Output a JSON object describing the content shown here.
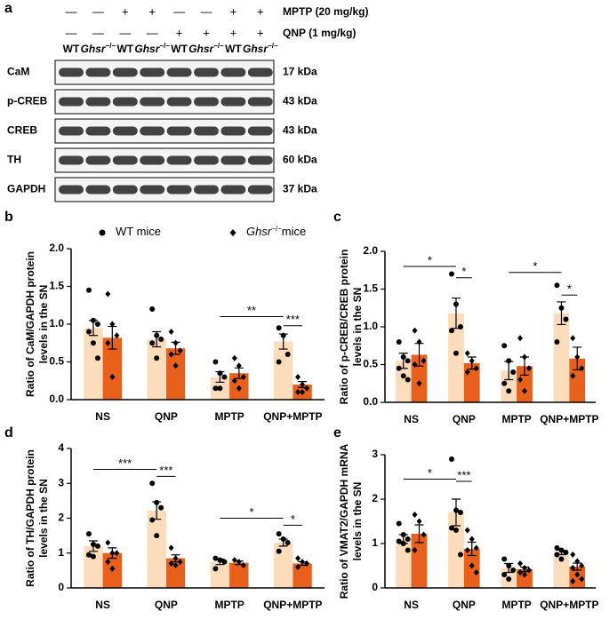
{
  "blot": {
    "panel": "a",
    "treatments": [
      {
        "label": "MPTP (20 mg/kg)",
        "signs": [
          "—",
          "—",
          "+",
          "+",
          "—",
          "—",
          "+",
          "+"
        ]
      },
      {
        "label": "QNP (1 mg/kg)",
        "signs": [
          "—",
          "—",
          "—",
          "—",
          "+",
          "+",
          "+",
          "+"
        ]
      }
    ],
    "genotypes": [
      {
        "text": "WT"
      },
      {
        "text": "Ghsr",
        "sup": "−/−"
      },
      {
        "text": "WT"
      },
      {
        "text": "Ghsr",
        "sup": "−/−"
      },
      {
        "text": "WT"
      },
      {
        "text": "Ghsr",
        "sup": "−/−"
      },
      {
        "text": "WT"
      },
      {
        "text": "Ghsr",
        "sup": "−/−"
      }
    ],
    "rows": [
      {
        "name": "CaM",
        "size": "17 kDa"
      },
      {
        "name": "p-CREB",
        "size": "43 kDa"
      },
      {
        "name": "CREB",
        "size": "43 kDa"
      },
      {
        "name": "TH",
        "size": "60 kDa"
      },
      {
        "name": "GAPDH",
        "size": "37 kDa"
      }
    ]
  },
  "legend": [
    {
      "text": "WT mice",
      "marker": "circle"
    },
    {
      "text": "Ghsr",
      "sup": "−/−",
      "suffix": "mice",
      "marker": "diamond"
    }
  ],
  "chart_data": [
    {
      "type": "bar",
      "panel": "b",
      "ylabel": [
        "Ratio of CaM/GAPDH protein",
        "levels in the SN"
      ],
      "categories": [
        "NS",
        "QNP",
        "MPTP",
        "QNP+MPTP"
      ],
      "ylim": [
        0,
        2
      ],
      "yticks": [
        {
          "value": 0,
          "label": "0.0"
        },
        0.5,
        {
          "value": 1,
          "label": "1.0"
        },
        1.5,
        {
          "value": 2,
          "label": "2.0"
        }
      ],
      "series": [
        {
          "color": "#fddcbc",
          "marker": "circle",
          "values": [
            0.95,
            0.8,
            0.3,
            0.77
          ],
          "errors": [
            0.1,
            0.1,
            0.07,
            0.1
          ],
          "points": [
            [
              1.45,
              1.05,
              1.0,
              0.9,
              0.75,
              0.55
            ],
            [
              1.2,
              0.85,
              0.8,
              0.75,
              0.55
            ],
            [
              0.5,
              0.35,
              0.3,
              0.15,
              0.15
            ],
            [
              0.95,
              0.85,
              0.6,
              0.5
            ]
          ]
        },
        {
          "color": "#e8601c",
          "marker": "diamond",
          "values": [
            0.82,
            0.68,
            0.35,
            0.2
          ],
          "errors": [
            0.15,
            0.08,
            0.07,
            0.04
          ],
          "points": [
            [
              1.4,
              1.0,
              0.85,
              0.75,
              0.3
            ],
            [
              0.9,
              0.75,
              0.65,
              0.6,
              0.45
            ],
            [
              0.55,
              0.45,
              0.3,
              0.25,
              0.15
            ],
            [
              0.3,
              0.2,
              0.15,
              0.1,
              0.1
            ]
          ]
        }
      ],
      "annotations": [
        {
          "text": "**",
          "y": 1.1,
          "from": [
            2,
            0
          ],
          "to": [
            3,
            0
          ]
        },
        {
          "text": "***",
          "y": 0.98,
          "from": [
            3,
            0
          ],
          "to": [
            3,
            1
          ]
        }
      ]
    },
    {
      "type": "bar",
      "panel": "c",
      "ylabel": [
        "Ratio of p-CREB/CREB protein",
        "levels in the SN"
      ],
      "categories": [
        "NS",
        "QNP",
        "MPTP",
        "QNP+MPTP"
      ],
      "ylim": [
        0,
        2
      ],
      "yticks": [
        {
          "value": 0,
          "label": "0.0"
        },
        0.5,
        {
          "value": 1,
          "label": "1.0"
        },
        1.5,
        {
          "value": 2,
          "label": "2.0"
        }
      ],
      "series": [
        {
          "color": "#fddcbc",
          "marker": "circle",
          "values": [
            0.55,
            1.18,
            0.42,
            1.18
          ],
          "errors": [
            0.1,
            0.2,
            0.12,
            0.15
          ],
          "points": [
            [
              0.8,
              0.6,
              0.55,
              0.45,
              0.35,
              0.3
            ],
            [
              1.7,
              1.3,
              1.0,
              0.95,
              0.65
            ],
            [
              0.75,
              0.55,
              0.4,
              0.25,
              0.15
            ],
            [
              1.55,
              1.25,
              1.1,
              0.8
            ]
          ]
        },
        {
          "color": "#e8601c",
          "marker": "diamond",
          "values": [
            0.63,
            0.52,
            0.48,
            0.58
          ],
          "errors": [
            0.15,
            0.08,
            0.12,
            0.15
          ],
          "points": [
            [
              0.95,
              0.8,
              0.55,
              0.5,
              0.25
            ],
            [
              0.65,
              0.55,
              0.45,
              0.4
            ],
            [
              0.85,
              0.6,
              0.45,
              0.3,
              0.15
            ],
            [
              0.85,
              0.6,
              0.45,
              0.35
            ]
          ]
        }
      ],
      "annotations": [
        {
          "text": "*",
          "y": 1.8,
          "from": [
            0,
            0
          ],
          "to": [
            1,
            0
          ]
        },
        {
          "text": "*",
          "y": 1.65,
          "from": [
            1,
            0
          ],
          "to": [
            1,
            1
          ]
        },
        {
          "text": "*",
          "y": 1.72,
          "from": [
            2,
            0
          ],
          "to": [
            3,
            0
          ]
        },
        {
          "text": "*",
          "y": 1.42,
          "from": [
            3,
            0
          ],
          "to": [
            3,
            1
          ]
        }
      ]
    },
    {
      "type": "bar",
      "panel": "d",
      "ylabel": [
        "Ratio of TH/GAPDH protein",
        "levels in the SN"
      ],
      "categories": [
        "NS",
        "QNP",
        "MPTP",
        "QNP+MPTP"
      ],
      "ylim": [
        0,
        4
      ],
      "yticks": [
        0,
        1,
        2,
        3,
        4
      ],
      "series": [
        {
          "color": "#fddcbc",
          "marker": "circle",
          "values": [
            1.2,
            2.22,
            0.75,
            1.3
          ],
          "errors": [
            0.15,
            0.25,
            0.08,
            0.1
          ],
          "points": [
            [
              1.55,
              1.25,
              1.2,
              0.95,
              0.9
            ],
            [
              3.0,
              2.45,
              2.3,
              1.95,
              1.5
            ],
            [
              0.85,
              0.8,
              0.75,
              0.55
            ],
            [
              1.55,
              1.4,
              1.3,
              1.05
            ]
          ]
        },
        {
          "color": "#e8601c",
          "marker": "diamond",
          "values": [
            1.0,
            0.85,
            0.72,
            0.7
          ],
          "errors": [
            0.15,
            0.1,
            0.05,
            0.05
          ],
          "points": [
            [
              1.3,
              1.0,
              1.0,
              0.75,
              0.55
            ],
            [
              1.15,
              0.85,
              0.75,
              0.7,
              0.65
            ],
            [
              0.8,
              0.75,
              0.65
            ],
            [
              0.85,
              0.75,
              0.7,
              0.6
            ]
          ]
        }
      ],
      "annotations": [
        {
          "text": "***",
          "y": 3.4,
          "from": [
            0,
            0
          ],
          "to": [
            1,
            0
          ]
        },
        {
          "text": "***",
          "y": 3.2,
          "from": [
            1,
            0
          ],
          "to": [
            1,
            1
          ]
        },
        {
          "text": "*",
          "y": 2.0,
          "from": [
            2,
            0
          ],
          "to": [
            3,
            0
          ]
        },
        {
          "text": "*",
          "y": 1.8,
          "from": [
            3,
            0
          ],
          "to": [
            3,
            1
          ]
        }
      ]
    },
    {
      "type": "bar",
      "panel": "e",
      "ylabel": [
        "Ratio of VMAT2/GAPDH mRNA",
        "levels in the SN"
      ],
      "categories": [
        "NS",
        "QNP",
        "MPTP",
        "QNP+MPTP"
      ],
      "ylim": [
        0,
        3
      ],
      "yticks": [
        0,
        1,
        2,
        3
      ],
      "series": [
        {
          "color": "#fddcbc",
          "marker": "circle",
          "values": [
            1.1,
            1.7,
            0.45,
            0.8
          ],
          "errors": [
            0.1,
            0.3,
            0.1,
            0.05
          ],
          "points": [
            [
              1.45,
              1.2,
              1.1,
              1.05,
              1.0,
              0.85
            ],
            [
              2.9,
              1.75,
              1.7,
              1.35,
              1.3,
              0.75
            ],
            [
              0.65,
              0.5,
              0.4,
              0.3,
              0.2
            ],
            [
              0.9,
              0.85,
              0.8,
              0.75,
              0.65
            ]
          ]
        },
        {
          "color": "#e8601c",
          "marker": "diamond",
          "values": [
            1.22,
            0.88,
            0.42,
            0.48
          ],
          "errors": [
            0.2,
            0.15,
            0.05,
            0.08
          ],
          "points": [
            [
              1.65,
              1.5,
              1.2,
              0.85
            ],
            [
              1.3,
              1.1,
              0.9,
              0.85,
              0.5,
              0.35
            ],
            [
              0.55,
              0.45,
              0.4,
              0.35,
              0.3
            ],
            [
              0.75,
              0.6,
              0.5,
              0.45,
              0.3,
              0.2,
              0.15
            ]
          ]
        }
      ],
      "annotations": [
        {
          "text": "*",
          "y": 2.45,
          "from": [
            0,
            0
          ],
          "to": [
            1,
            0
          ]
        },
        {
          "text": "***",
          "y": 2.4,
          "from": [
            1,
            0
          ],
          "to": [
            1,
            1
          ]
        }
      ]
    }
  ]
}
